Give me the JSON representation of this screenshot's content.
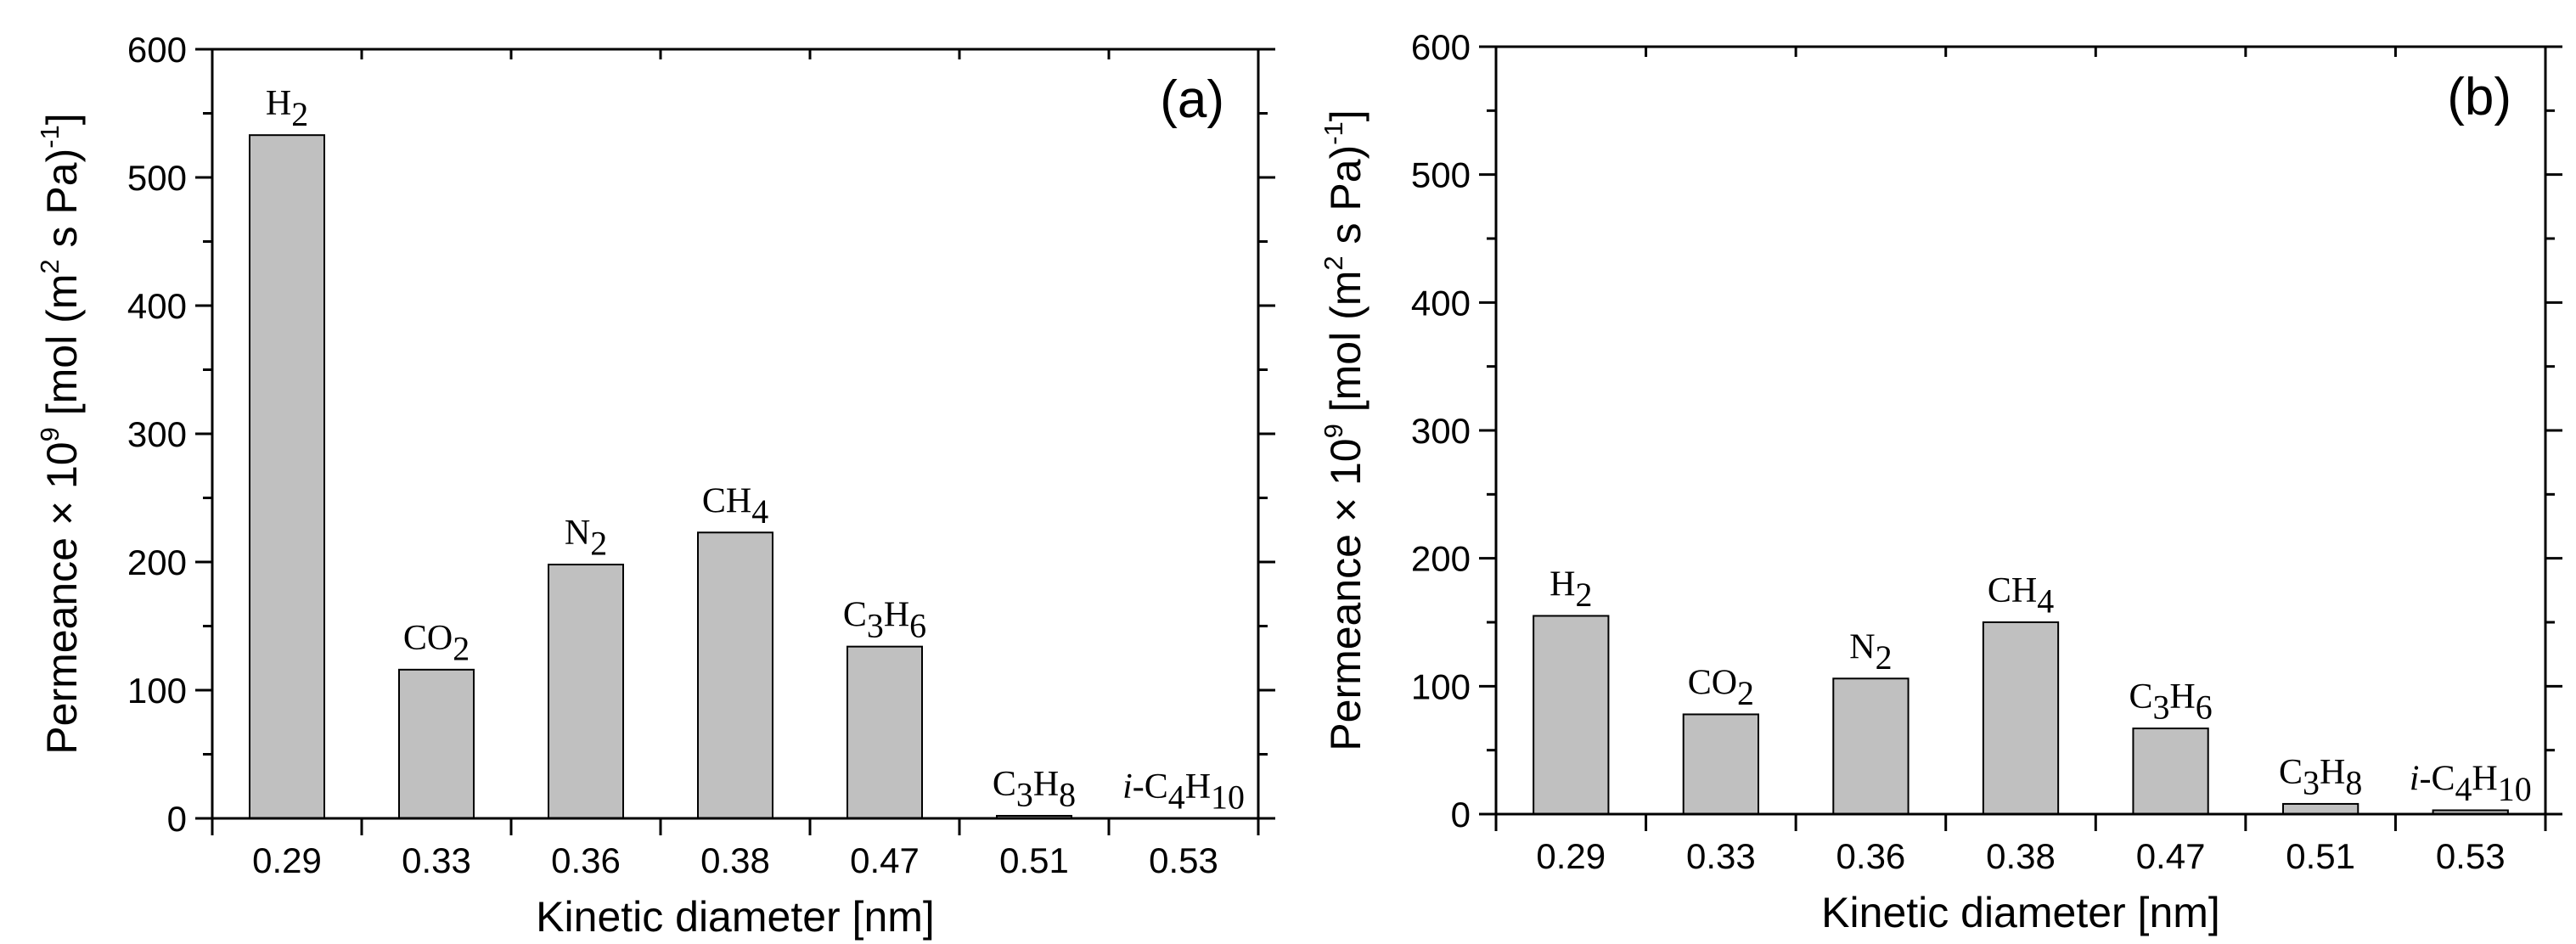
{
  "chart_data": [
    {
      "type": "bar",
      "panel_label": "(a)",
      "xlabel": "Kinetic diameter [nm]",
      "ylabel": "Permeance × 10^9 [mol (m^2 s Pa)^-1]",
      "ylim": [
        0,
        600
      ],
      "yticks": [
        0,
        100,
        200,
        300,
        400,
        500,
        600
      ],
      "categories": [
        "0.29",
        "0.33",
        "0.36",
        "0.38",
        "0.47",
        "0.51",
        "0.53"
      ],
      "gases": [
        "H2",
        "CO2",
        "N2",
        "CH4",
        "C3H6",
        "C3H8",
        "i-C4H10"
      ],
      "values": [
        533,
        116,
        198,
        223,
        134,
        2,
        0
      ],
      "bar_color": "#c0c0c0"
    },
    {
      "type": "bar",
      "panel_label": "(b)",
      "xlabel": "Kinetic diameter [nm]",
      "ylabel": "Permeance × 10^9 [mol (m^2 s Pa)^-1]",
      "ylim": [
        0,
        600
      ],
      "yticks": [
        0,
        100,
        200,
        300,
        400,
        500,
        600
      ],
      "categories": [
        "0.29",
        "0.33",
        "0.36",
        "0.38",
        "0.47",
        "0.51",
        "0.53"
      ],
      "gases": [
        "H2",
        "CO2",
        "N2",
        "CH4",
        "C3H6",
        "C3H8",
        "i-C4H10"
      ],
      "values": [
        155,
        78,
        106,
        150,
        67,
        8,
        3
      ],
      "bar_color": "#c0c0c0"
    }
  ]
}
